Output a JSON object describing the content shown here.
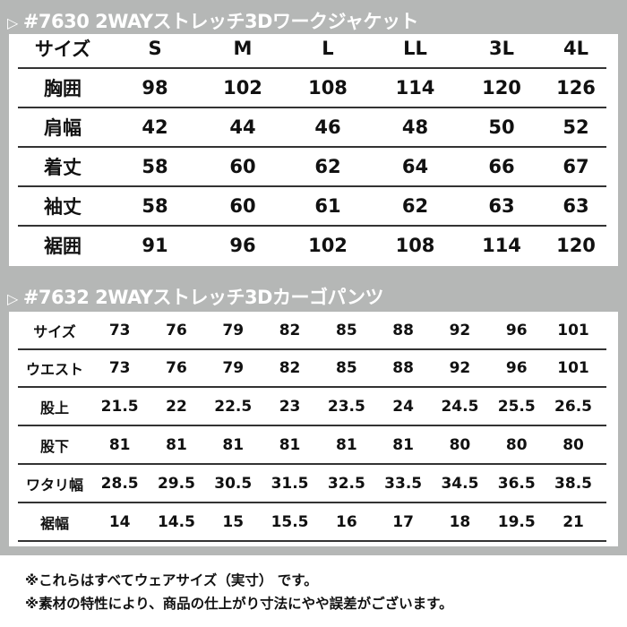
{
  "jacket": {
    "arrow_icon": "▷",
    "title": "#7630  2WAYストレッチ3Dワークジャケット",
    "rows": [
      [
        "サイズ",
        "S",
        "M",
        "L",
        "LL",
        "3L",
        "4L"
      ],
      [
        "胸囲",
        "98",
        "102",
        "108",
        "114",
        "120",
        "126"
      ],
      [
        "肩幅",
        "42",
        "44",
        "46",
        "48",
        "50",
        "52"
      ],
      [
        "着丈",
        "58",
        "60",
        "62",
        "64",
        "66",
        "67"
      ],
      [
        "袖丈",
        "58",
        "60",
        "61",
        "62",
        "63",
        "63"
      ],
      [
        "裾囲",
        "91",
        "96",
        "102",
        "108",
        "114",
        "120"
      ]
    ]
  },
  "pants": {
    "arrow_icon": "▷",
    "title": "#7632  2WAYストレッチ3Dカーゴパンツ",
    "rows": [
      [
        "サイズ",
        "73",
        "76",
        "79",
        "82",
        "85",
        "88",
        "92",
        "96",
        "101"
      ],
      [
        "ウエスト",
        "73",
        "76",
        "79",
        "82",
        "85",
        "88",
        "92",
        "96",
        "101"
      ],
      [
        "股上",
        "21.5",
        "22",
        "22.5",
        "23",
        "23.5",
        "24",
        "24.5",
        "25.5",
        "26.5"
      ],
      [
        "股下",
        "81",
        "81",
        "81",
        "81",
        "81",
        "81",
        "80",
        "80",
        "80"
      ],
      [
        "ワタリ幅",
        "28.5",
        "29.5",
        "30.5",
        "31.5",
        "32.5",
        "33.5",
        "34.5",
        "36.5",
        "38.5"
      ],
      [
        "裾幅",
        "14",
        "14.5",
        "15",
        "15.5",
        "16",
        "17",
        "18",
        "19.5",
        "21"
      ]
    ]
  },
  "notes": [
    "※これらはすべてウェアサイズ（実寸） です。",
    "※素材の特性により、商品の仕上がり寸法にやや誤差がございます。"
  ],
  "colors": {
    "background": "#b5b7b6",
    "panel": "#ffffff",
    "rule": "#333333",
    "title": "#ffffff"
  }
}
